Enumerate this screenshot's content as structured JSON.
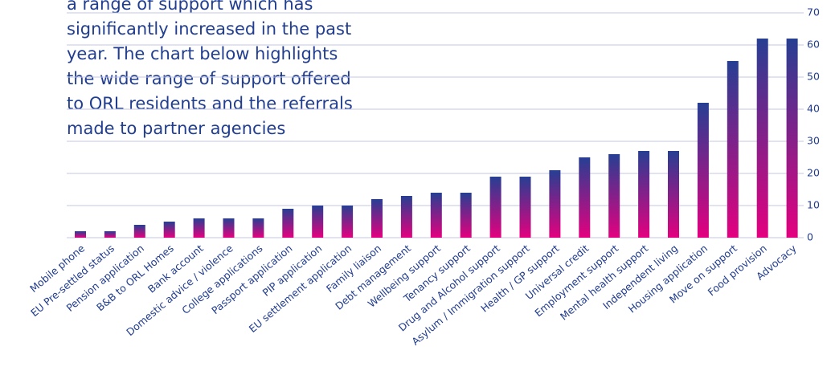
{
  "intro": {
    "lines": [
      "a range of support which has",
      "significantly increased in the past",
      "year. The chart below highlights",
      "the wide range of support offered",
      "to ORL residents and the referrals",
      "made to partner agencies"
    ]
  },
  "chart_data": {
    "type": "bar",
    "categories": [
      "Mobile phone",
      "EU Pre-settled status",
      "Pension application",
      "B&B to ORL Homes",
      "Bank account",
      "Domestic advice / violence",
      "College applications",
      "Passport application",
      "PIP application",
      "EU settlement application",
      "Family liaison",
      "Debt management",
      "Wellbeing support",
      "Tenancy support",
      "Drug and Alcohol support",
      "Asylum / Immigration support",
      "Health / GP support",
      "Universal credit",
      "Employment support",
      "Mental health support",
      "Independent living",
      "Housing application",
      "Move on support",
      "Food provision",
      "Advocacy"
    ],
    "values": [
      2,
      2,
      4,
      5,
      6,
      6,
      6,
      9,
      10,
      10,
      12,
      13,
      14,
      14,
      19,
      19,
      21,
      25,
      26,
      27,
      27,
      42,
      55,
      62,
      62
    ],
    "color": [
      "#263f93",
      "#e4007f"
    ],
    "ylim": [
      0,
      70
    ],
    "yticks": [
      0,
      10,
      20,
      30,
      40,
      50,
      60,
      70
    ],
    "grid": true,
    "y_axis_side": "right"
  }
}
